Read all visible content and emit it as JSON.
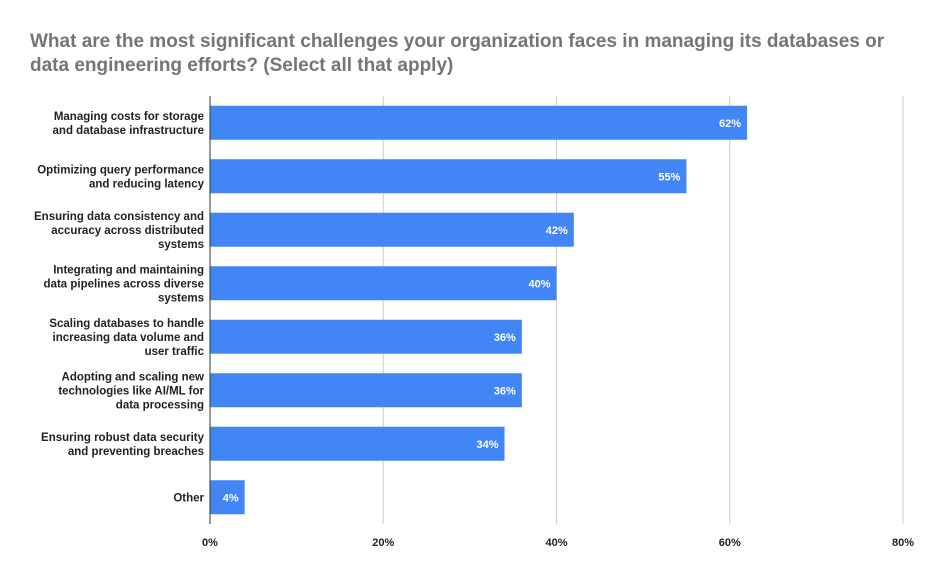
{
  "chart_data": {
    "type": "bar",
    "orientation": "horizontal",
    "title": "What are the most significant challenges your organization faces in managing its databases or data engineering efforts? (Select all that apply)",
    "categories": [
      [
        "Managing costs for storage",
        "and database infrastructure"
      ],
      [
        "Optimizing query performance",
        "and reducing latency"
      ],
      [
        "Ensuring data consistency and",
        "accuracy across distributed",
        "systems"
      ],
      [
        "Integrating and maintaining",
        "data pipelines across diverse",
        "systems"
      ],
      [
        "Scaling databases to handle",
        "increasing data volume and",
        "user traffic"
      ],
      [
        "Adopting and scaling new",
        "technologies like AI/ML for",
        "data processing"
      ],
      [
        "Ensuring robust data security",
        "and preventing breaches"
      ],
      [
        "Other"
      ]
    ],
    "values": [
      62,
      55,
      42,
      40,
      36,
      36,
      34,
      4
    ],
    "data_labels": [
      "62%",
      "55%",
      "42%",
      "40%",
      "36%",
      "36%",
      "34%",
      "4%"
    ],
    "x_ticks": [
      0,
      20,
      40,
      60,
      80
    ],
    "x_tick_labels": [
      "0%",
      "20%",
      "40%",
      "60%",
      "80%"
    ],
    "xlim": [
      0,
      80
    ],
    "xlabel": "",
    "ylabel": "",
    "grid": true,
    "legend": "none",
    "bar_color": "#4285f4",
    "grid_color": "#cccccc",
    "axis_color": "#333333"
  }
}
